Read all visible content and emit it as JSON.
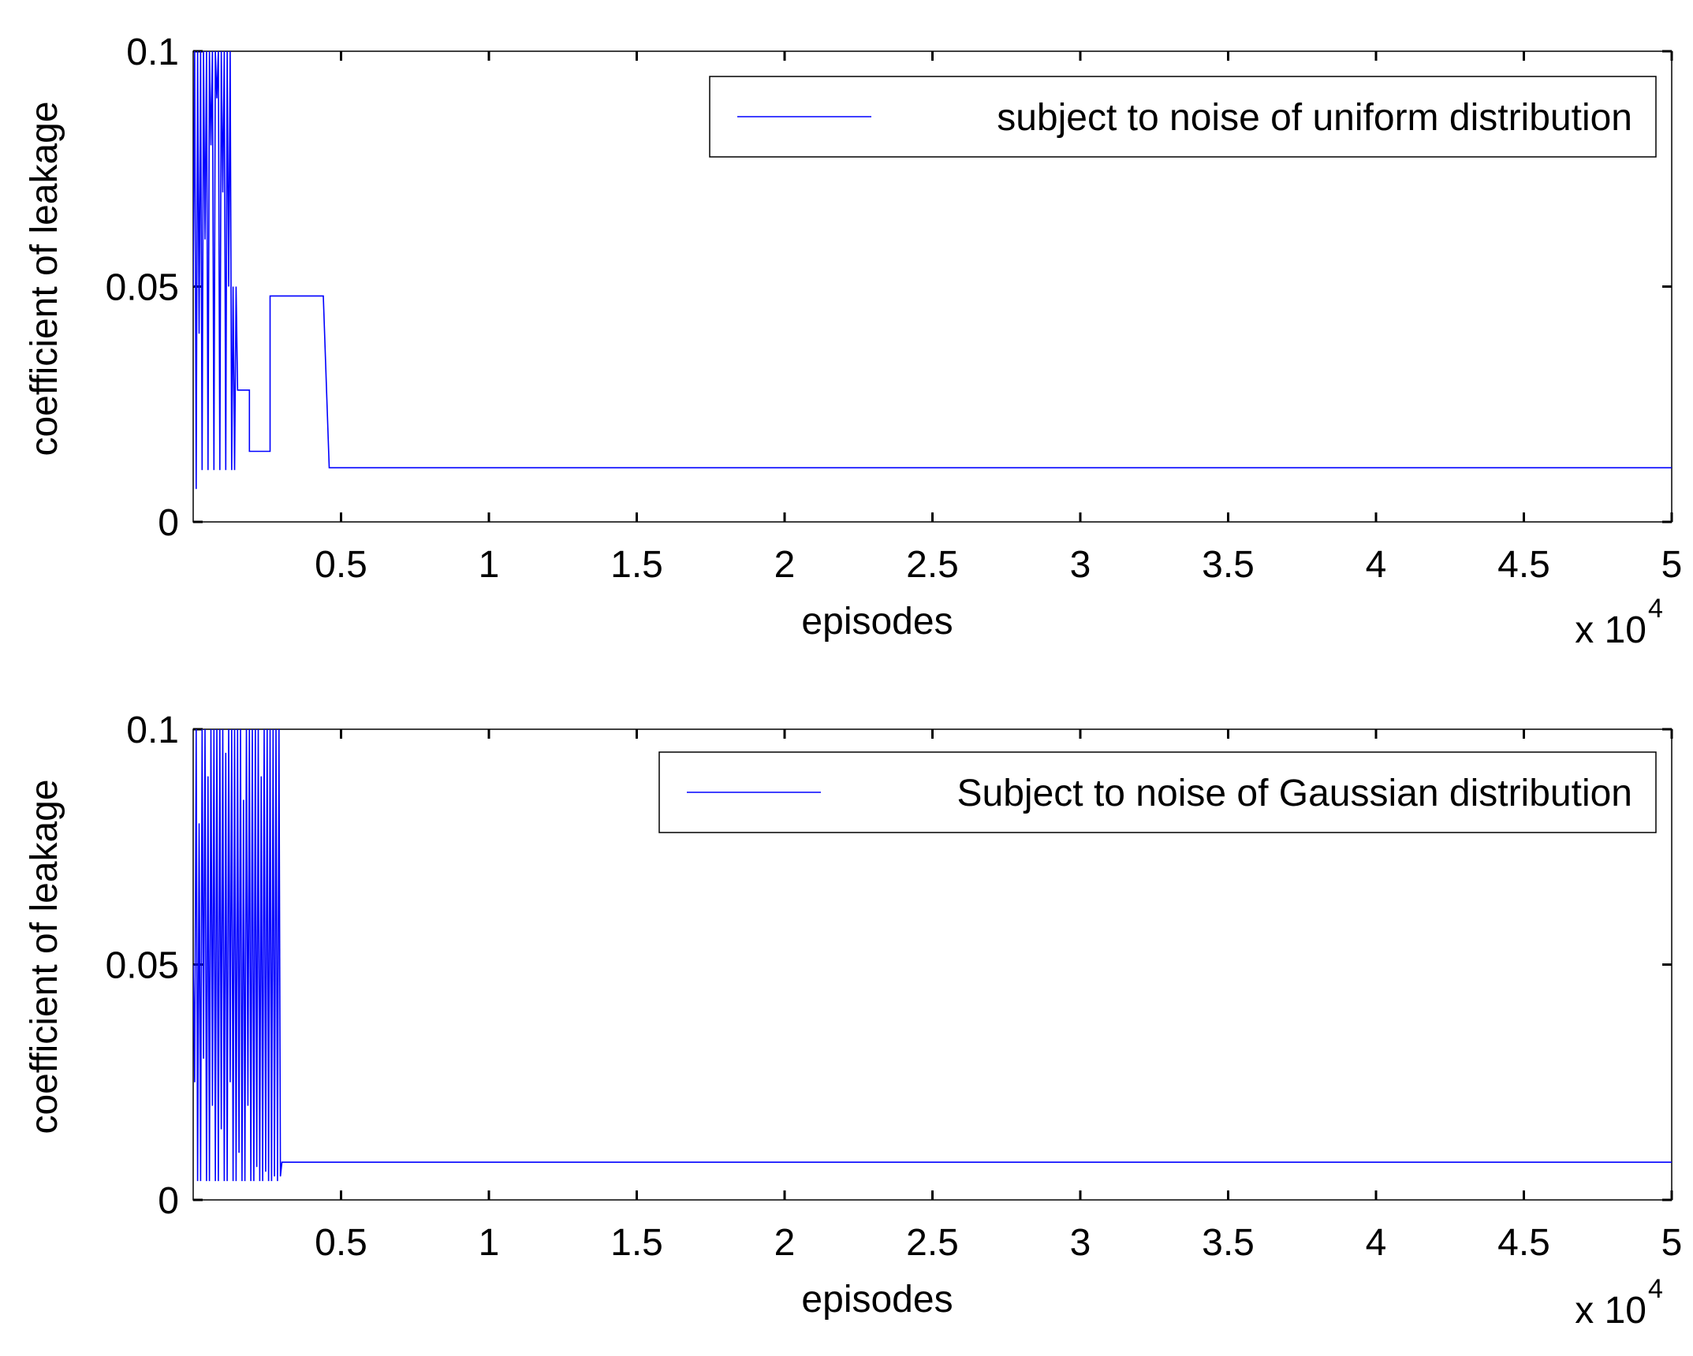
{
  "colors": {
    "background": "#ffffff",
    "axes": "#000000",
    "series": "#0000ff"
  },
  "chart_data": [
    {
      "type": "line",
      "title": "",
      "xlabel": "episodes",
      "ylabel": "coefficient of leakage",
      "x_exponent_label": {
        "base": "x 10",
        "power": "4"
      },
      "xlim": [
        0,
        50000
      ],
      "ylim": [
        0,
        0.1
      ],
      "xticks": [
        5000,
        10000,
        15000,
        20000,
        25000,
        30000,
        35000,
        40000,
        45000,
        50000
      ],
      "xtick_labels": [
        "0.5",
        "1",
        "1.5",
        "2",
        "2.5",
        "3",
        "3.5",
        "4",
        "4.5",
        "5"
      ],
      "yticks": [
        0,
        0.05,
        0.1
      ],
      "ytick_labels": [
        "0",
        "0.05",
        "0.1"
      ],
      "grid": false,
      "legend": {
        "position": "top-right",
        "entries": [
          "subject to noise of uniform distribution"
        ]
      },
      "series": [
        {
          "name": "subject to noise of uniform distribution",
          "color": "#0000ff",
          "x": [
            0,
            50,
            100,
            150,
            200,
            250,
            300,
            350,
            400,
            450,
            500,
            550,
            600,
            650,
            700,
            750,
            800,
            850,
            900,
            950,
            1000,
            1050,
            1100,
            1150,
            1200,
            1250,
            1300,
            1350,
            1400,
            1450,
            1500,
            1500,
            1900,
            1900,
            2000,
            2000,
            2600,
            2600,
            4400,
            4600,
            50000
          ],
          "y": [
            0.05,
            0.1,
            0.007,
            0.1,
            0.04,
            0.1,
            0.011,
            0.1,
            0.06,
            0.1,
            0.011,
            0.1,
            0.08,
            0.1,
            0.011,
            0.1,
            0.09,
            0.1,
            0.011,
            0.1,
            0.07,
            0.1,
            0.011,
            0.1,
            0.05,
            0.1,
            0.011,
            0.05,
            0.011,
            0.05,
            0.028,
            0.028,
            0.028,
            0.015,
            0.015,
            0.015,
            0.015,
            0.048,
            0.048,
            0.0115,
            0.0115
          ]
        }
      ]
    },
    {
      "type": "line",
      "title": "",
      "xlabel": "episodes",
      "ylabel": "coefficient of leakage",
      "x_exponent_label": {
        "base": "x 10",
        "power": "4"
      },
      "xlim": [
        0,
        50000
      ],
      "ylim": [
        0,
        0.1
      ],
      "xticks": [
        5000,
        10000,
        15000,
        20000,
        25000,
        30000,
        35000,
        40000,
        45000,
        50000
      ],
      "xtick_labels": [
        "0.5",
        "1",
        "1.5",
        "2",
        "2.5",
        "3",
        "3.5",
        "4",
        "4.5",
        "5"
      ],
      "yticks": [
        0,
        0.05,
        0.1
      ],
      "ytick_labels": [
        "0",
        "0.05",
        "0.1"
      ],
      "grid": false,
      "legend": {
        "position": "top-right",
        "entries": [
          "Subject to noise of Gaussian distribution"
        ]
      },
      "series": [
        {
          "name": "Subject to noise of Gaussian distribution",
          "color": "#0000ff",
          "x": [
            0,
            50,
            100,
            150,
            200,
            250,
            300,
            350,
            400,
            450,
            500,
            550,
            600,
            650,
            700,
            750,
            800,
            850,
            900,
            950,
            1000,
            1050,
            1100,
            1150,
            1200,
            1250,
            1300,
            1350,
            1400,
            1450,
            1500,
            1550,
            1600,
            1650,
            1700,
            1750,
            1800,
            1850,
            1900,
            1950,
            2000,
            2050,
            2100,
            2150,
            2200,
            2250,
            2300,
            2350,
            2400,
            2450,
            2500,
            2550,
            2600,
            2650,
            2700,
            2750,
            2800,
            2850,
            2900,
            2950,
            3000,
            50000
          ],
          "y": [
            0.05,
            0.025,
            0.1,
            0.004,
            0.08,
            0.004,
            0.1,
            0.03,
            0.1,
            0.004,
            0.09,
            0.004,
            0.1,
            0.02,
            0.1,
            0.004,
            0.1,
            0.004,
            0.1,
            0.015,
            0.1,
            0.004,
            0.095,
            0.004,
            0.1,
            0.025,
            0.1,
            0.004,
            0.1,
            0.004,
            0.1,
            0.01,
            0.1,
            0.004,
            0.085,
            0.004,
            0.1,
            0.02,
            0.1,
            0.004,
            0.1,
            0.004,
            0.1,
            0.007,
            0.1,
            0.004,
            0.09,
            0.004,
            0.1,
            0.006,
            0.1,
            0.004,
            0.1,
            0.004,
            0.1,
            0.005,
            0.1,
            0.004,
            0.1,
            0.005,
            0.008,
            0.008
          ]
        }
      ]
    }
  ]
}
